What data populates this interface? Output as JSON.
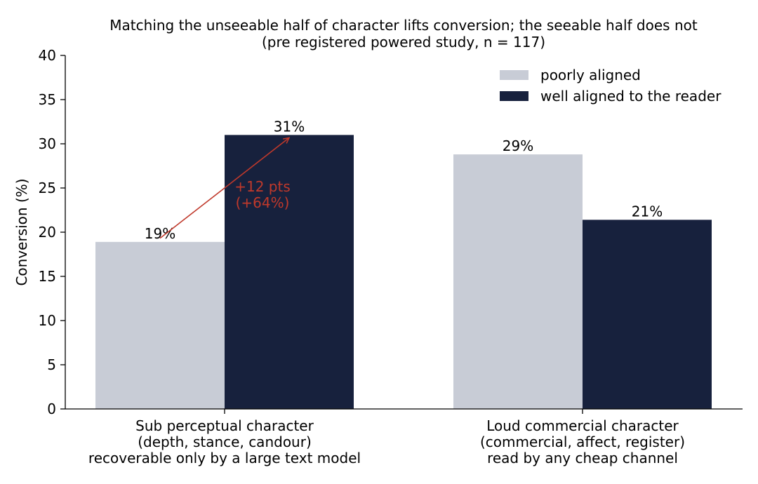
{
  "chart_data": {
    "type": "bar",
    "title": "Matching the unseeable half of character lifts conversion; the seeable half does not",
    "subtitle": "(pre registered powered study, n = 117)",
    "ylabel": "Conversion (%)",
    "xlabel": "",
    "ylim": [
      0,
      40
    ],
    "yticks": [
      0,
      5,
      10,
      15,
      20,
      25,
      30,
      35,
      40
    ],
    "grid": false,
    "legend_position": "top-right",
    "categories": [
      {
        "lines": [
          "Sub perceptual character",
          "(depth, stance, candour)",
          "recoverable only by a large text model"
        ]
      },
      {
        "lines": [
          "Loud commercial character",
          "(commercial, affect, register)",
          "read by any cheap channel"
        ]
      }
    ],
    "series": [
      {
        "name": "poorly aligned",
        "color": "#c8ccd6",
        "values": [
          18.9,
          28.8
        ],
        "labels": [
          "19%",
          "29%"
        ]
      },
      {
        "name": "well aligned to the reader",
        "color": "#17213d",
        "values": [
          31.0,
          21.4
        ],
        "labels": [
          "31%",
          "21%"
        ]
      }
    ],
    "annotation": {
      "lines": [
        "+12 pts",
        "(+64%)"
      ],
      "color": "#c0392b",
      "from": {
        "category": 0,
        "series": 0,
        "y": 19.0
      },
      "to": {
        "category": 0,
        "series": 1,
        "y": 31.0
      }
    }
  }
}
